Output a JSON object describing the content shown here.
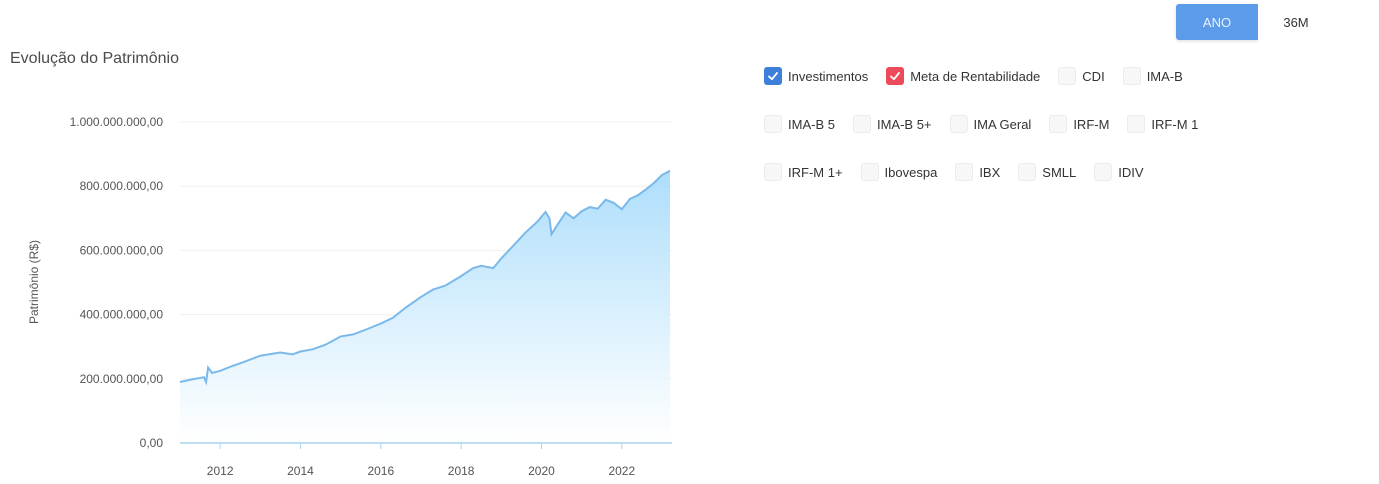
{
  "period_toggle": {
    "options": [
      {
        "label": "ANO",
        "active": true
      },
      {
        "label": "36M",
        "active": false
      }
    ]
  },
  "colors": {
    "accent": "#5b9bea",
    "line": "#7ab9ea",
    "fill_top": "#a9dcfb",
    "checkbox_blue": "#3f7fdc",
    "checkbox_red": "#ef4a5a"
  },
  "chart_data": {
    "type": "area",
    "title": "Evolução do Patrimônio",
    "xlabel": "",
    "ylabel": "Patrimônio (R$)",
    "xlim": [
      2011.0,
      2023.25
    ],
    "ylim": [
      0,
      1000000000
    ],
    "x_ticks": [
      "2012",
      "2014",
      "2016",
      "2018",
      "2020",
      "2022"
    ],
    "y_ticks": [
      "0,00",
      "200.000.000,00",
      "400.000.000,00",
      "600.000.000,00",
      "800.000.000,00",
      "1.000.000.000,00"
    ],
    "grid": true,
    "series": [
      {
        "name": "Investimentos",
        "x": [
          2011.0,
          2011.3,
          2011.6,
          2011.65,
          2011.7,
          2011.8,
          2012.0,
          2012.3,
          2012.6,
          2013.0,
          2013.3,
          2013.5,
          2013.8,
          2014.0,
          2014.3,
          2014.6,
          2014.8,
          2015.0,
          2015.3,
          2015.6,
          2016.0,
          2016.3,
          2016.6,
          2017.0,
          2017.3,
          2017.6,
          2018.0,
          2018.3,
          2018.5,
          2018.8,
          2019.0,
          2019.3,
          2019.6,
          2019.9,
          2020.1,
          2020.2,
          2020.25,
          2020.4,
          2020.6,
          2020.8,
          2021.0,
          2021.2,
          2021.4,
          2021.6,
          2021.8,
          2022.0,
          2022.2,
          2022.4,
          2022.6,
          2022.8,
          2023.0,
          2023.2
        ],
        "values": [
          190000000,
          198000000,
          205000000,
          190000000,
          235000000,
          218000000,
          225000000,
          240000000,
          253000000,
          272000000,
          278000000,
          282000000,
          276000000,
          285000000,
          292000000,
          305000000,
          318000000,
          332000000,
          338000000,
          352000000,
          372000000,
          390000000,
          420000000,
          455000000,
          478000000,
          490000000,
          520000000,
          545000000,
          552000000,
          545000000,
          575000000,
          615000000,
          655000000,
          690000000,
          720000000,
          700000000,
          650000000,
          680000000,
          718000000,
          700000000,
          722000000,
          735000000,
          730000000,
          758000000,
          748000000,
          728000000,
          760000000,
          772000000,
          790000000,
          810000000,
          835000000,
          848000000
        ]
      }
    ]
  },
  "legend": {
    "rows": [
      [
        {
          "label": "Investimentos",
          "state": "checked-blue"
        },
        {
          "label": "Meta de Rentabilidade",
          "state": "checked-red"
        },
        {
          "label": "CDI",
          "state": "unchecked"
        },
        {
          "label": "IMA-B",
          "state": "unchecked"
        }
      ],
      [
        {
          "label": "IMA-B 5",
          "state": "unchecked"
        },
        {
          "label": "IMA-B 5+",
          "state": "unchecked"
        },
        {
          "label": "IMA Geral",
          "state": "unchecked"
        },
        {
          "label": "IRF-M",
          "state": "unchecked"
        },
        {
          "label": "IRF-M 1",
          "state": "unchecked"
        }
      ],
      [
        {
          "label": "IRF-M 1+",
          "state": "unchecked"
        },
        {
          "label": "Ibovespa",
          "state": "unchecked"
        },
        {
          "label": "IBX",
          "state": "unchecked"
        },
        {
          "label": "SMLL",
          "state": "unchecked"
        },
        {
          "label": "IDIV",
          "state": "unchecked"
        }
      ]
    ]
  }
}
